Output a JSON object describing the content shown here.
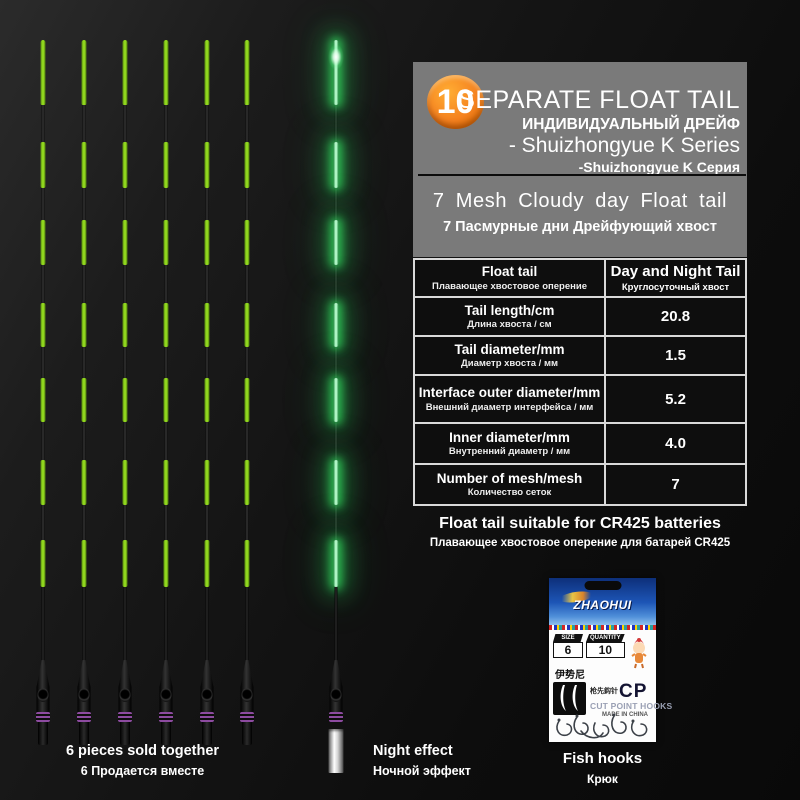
{
  "header": {
    "badge": "10",
    "title_en": "SEPARATE FLOAT TAIL",
    "title_ru": "ИНДИВИДУАЛЬНЫЙ ДРЕЙФ",
    "series_en": "- Shuizhongyue K Series",
    "series_ru": "-Shuizhongyue K Серия",
    "mesh_title_en": "7 Mesh Cloudy day Float tail",
    "mesh_title_ru": "7 Пасмурные дни Дрейфующий хвост"
  },
  "spec_table": {
    "rows": [
      {
        "label_en": "Float tail",
        "label_ru": "Плавающее хвостовое оперение",
        "value_en": "Day and Night Tail",
        "value_ru": "Круглосуточный хвост"
      },
      {
        "label_en": "Tail length/cm",
        "label_ru": "Длина хвоста / см",
        "value_en": "20.8",
        "value_ru": ""
      },
      {
        "label_en": "Tail diameter/mm",
        "label_ru": "Диаметр хвоста / мм",
        "value_en": "1.5",
        "value_ru": ""
      },
      {
        "label_en": "Interface outer diameter/mm",
        "label_ru": "Внешний диаметр интерфейса / мм",
        "value_en": "5.2",
        "value_ru": ""
      },
      {
        "label_en": "Inner diameter/mm",
        "label_ru": "Внутренний диаметр / мм",
        "value_en": "4.0",
        "value_ru": ""
      },
      {
        "label_en": "Number of mesh/mesh",
        "label_ru": "Количество сеток",
        "value_en": "7",
        "value_ru": ""
      }
    ]
  },
  "notes": {
    "battery_en": "Float tail suitable for CR425 batteries",
    "battery_ru": "Плавающее хвостовое оперение для батарей CR425"
  },
  "captions": {
    "pieces_en": "6 pieces sold together",
    "pieces_ru": "6 Продается вместе",
    "night_en": "Night effect",
    "night_ru": "Ночной эффект",
    "hooks_en": "Fish hooks",
    "hooks_ru": "Крюк"
  },
  "hook_package": {
    "brand": "ZHAOHUI",
    "size_label": "SIZE",
    "size_value": "6",
    "qty_label": "QUANTITY",
    "qty_value": "10",
    "name_cn": "伊势尼",
    "type_cn": "枪先鈎针",
    "cp": "CP",
    "subtitle": "CUT POINT HOOKS",
    "origin": "MADE IN CHINA"
  },
  "floats": {
    "pieces": 6,
    "mesh_per_float": 7
  },
  "colors": {
    "green": "#90d61e",
    "glow_green": "#34e062",
    "orange": "#f58220",
    "panel_gray": "#7a7a7a",
    "purple": "#8d4ba0"
  }
}
